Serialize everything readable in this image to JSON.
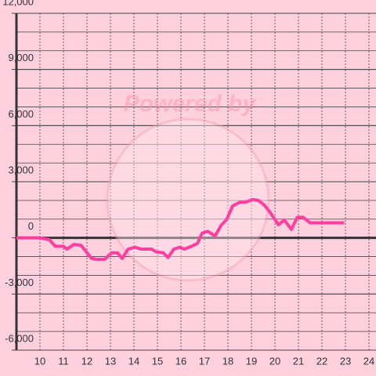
{
  "chart_data": {
    "type": "line",
    "watermark": "Powered by",
    "x": [
      9,
      10,
      10.4,
      10.65,
      11,
      11.15,
      11.45,
      11.75,
      12.2,
      12.4,
      12.75,
      13.05,
      13.3,
      13.5,
      13.75,
      14.05,
      14.3,
      14.75,
      14.95,
      15.25,
      15.45,
      15.7,
      15.95,
      16.15,
      16.45,
      16.7,
      16.9,
      17.15,
      17.45,
      17.7,
      17.95,
      18.2,
      18.5,
      18.75,
      19.05,
      19.3,
      19.55,
      19.8,
      20.15,
      20.4,
      20.7,
      20.95,
      21.2,
      21.5,
      22.95
    ],
    "series": [
      {
        "color": "#ff3ea0",
        "values": [
          0,
          0,
          -100,
          -450,
          -450,
          -600,
          -350,
          -400,
          -1100,
          -1150,
          -1150,
          -800,
          -800,
          -1100,
          -600,
          -500,
          -600,
          -600,
          -750,
          -800,
          -1050,
          -600,
          -500,
          -600,
          -450,
          -300,
          250,
          350,
          100,
          650,
          1000,
          1700,
          1900,
          1900,
          2050,
          2000,
          1750,
          1350,
          700,
          950,
          450,
          1100,
          1100,
          800,
          800
        ]
      }
    ],
    "xlim": [
      9,
      24.3
    ],
    "xticks": [
      10,
      11,
      12,
      13,
      14,
      15,
      16,
      17,
      18,
      19,
      20,
      21,
      22,
      23,
      24
    ],
    "ylim": [
      -6000,
      12000
    ],
    "yticks": [
      {
        "value": -6000,
        "label": "-6,000"
      },
      {
        "value": -3000,
        "label": "-3,000"
      },
      0,
      {
        "value": 3000,
        "label": "3,000"
      },
      {
        "value": 6000,
        "label": "6,000"
      },
      {
        "value": 9000,
        "label": "9,000"
      },
      {
        "value": 12000,
        "label": "12,000"
      }
    ],
    "y_grid_step": 1000,
    "grid": true
  }
}
